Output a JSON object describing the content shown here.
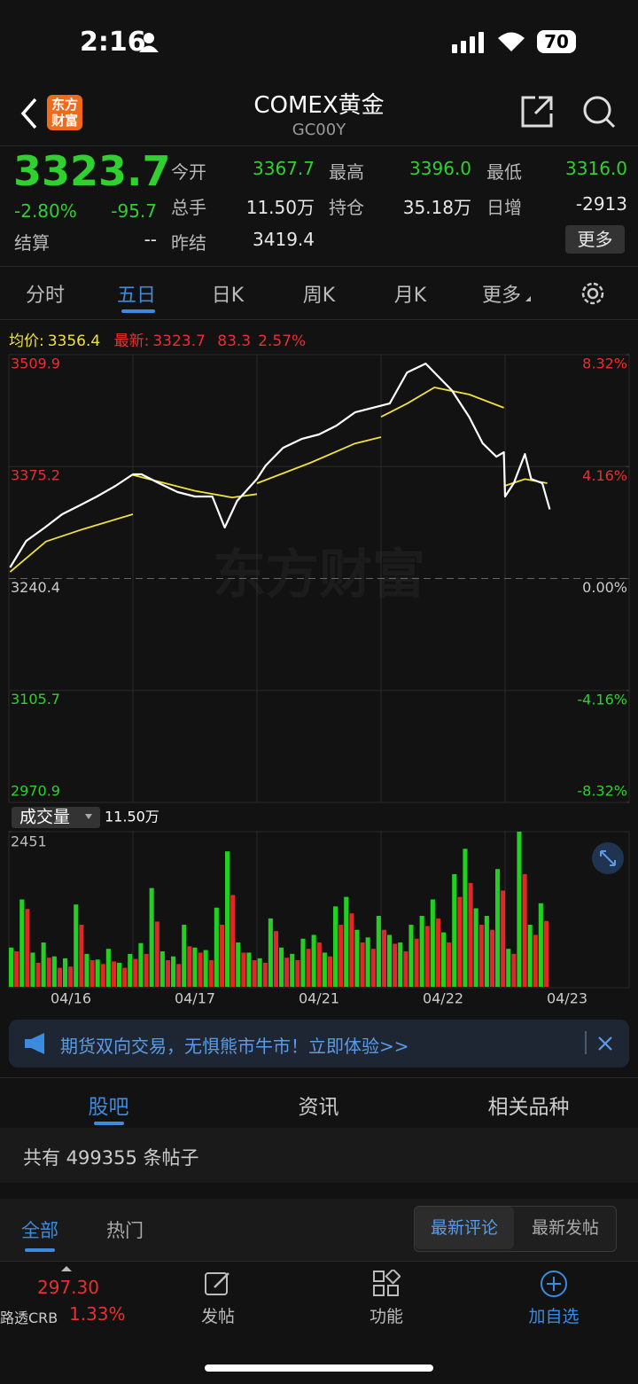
{
  "status": {
    "time": "2:16",
    "battery": "70"
  },
  "header": {
    "logo": "东方财富",
    "title": "COMEX黄金",
    "code": "GC00Y"
  },
  "quote": {
    "price": "3323.7",
    "change_pct": "-2.80%",
    "change": "-95.7",
    "more": "更多",
    "fields": [
      {
        "label": "今开",
        "value": "3367.7",
        "color": "#2fd02f"
      },
      {
        "label": "最高",
        "value": "3396.0",
        "color": "#2fd02f"
      },
      {
        "label": "最低",
        "value": "3316.0",
        "color": "#2fd02f"
      },
      {
        "label": "总手",
        "value": "11.50万",
        "color": "#e8e8e8"
      },
      {
        "label": "持仓",
        "value": "35.18万",
        "color": "#e8e8e8"
      },
      {
        "label": "日增",
        "value": "-2913",
        "color": "#e8e8e8"
      },
      {
        "label": "结算",
        "value": "--",
        "color": "#e8e8e8"
      },
      {
        "label": "昨结",
        "value": "3419.4",
        "color": "#e8e8e8"
      }
    ]
  },
  "tabs": {
    "items": [
      "分时",
      "五日",
      "日K",
      "周K",
      "月K",
      "更多"
    ],
    "active": 1
  },
  "legend": {
    "avg_label": "均价:",
    "avg": "3356.4",
    "latest_label": "最新:",
    "latest": "3323.7",
    "change": "83.3",
    "change_pct": "2.57%"
  },
  "price_chart": {
    "type": "line",
    "watermark": "东方财富",
    "ylim": [
      2970.9,
      3509.9
    ],
    "yticks": [
      3509.9,
      3375.2,
      3240.4,
      3105.7,
      2970.9
    ],
    "y2lim": [
      -8.32,
      8.32
    ],
    "y2ticks": [
      {
        "value": 8.32,
        "label": "8.32%"
      },
      {
        "value": 4.16,
        "label": "4.16%"
      },
      {
        "value": 0,
        "label": "0.00%"
      },
      {
        "value": -4.16,
        "label": "-4.16%"
      },
      {
        "value": -8.32,
        "label": "-8.32%"
      }
    ],
    "xlim": [
      0,
      5
    ],
    "categories": [
      "04/16",
      "04/17",
      "04/21",
      "04/22",
      "04/23"
    ],
    "price": {
      "color": "#ffffff",
      "x": [
        0.01,
        0.14,
        0.29,
        0.43,
        0.57,
        0.71,
        0.86,
        1.0,
        1.07,
        1.21,
        1.36,
        1.5,
        1.64,
        1.74,
        1.84,
        2.0,
        2.07,
        2.21,
        2.36,
        2.5,
        2.64,
        2.79,
        2.93,
        3.07,
        3.21,
        3.36,
        3.43,
        3.57,
        3.71,
        3.82,
        3.93,
        3.99,
        4.0,
        4.07,
        4.16,
        4.21,
        4.3,
        4.36
      ],
      "values": [
        3253.7,
        3285.7,
        3301.8,
        3317.8,
        3328.4,
        3339.1,
        3351.9,
        3365.8,
        3365.8,
        3355.1,
        3344.5,
        3339.1,
        3339.1,
        3301.8,
        3333.8,
        3360.4,
        3376.4,
        3397.7,
        3408.4,
        3413.8,
        3424.4,
        3440.4,
        3445.8,
        3451.1,
        3488.5,
        3499.1,
        3488.5,
        3467.1,
        3435.1,
        3403.1,
        3387.1,
        3392.4,
        3339.1,
        3355.1,
        3390.3,
        3360.4,
        3355.1,
        3323.7
      ]
    },
    "avg": {
      "color": "#f0e040",
      "x": [
        0.01,
        0.3,
        0.6,
        1.0,
        null,
        1.0,
        1.5,
        1.8,
        2.0,
        null,
        2.0,
        2.43,
        2.79,
        3.0,
        null,
        3.0,
        3.21,
        3.43,
        3.71,
        3.99,
        null,
        4.0,
        4.16,
        4.34
      ],
      "values": [
        3248.4,
        3285.0,
        3300.0,
        3317.8,
        null,
        3365.0,
        3346.0,
        3338.0,
        3342.0,
        null,
        3355.0,
        3379.7,
        3403.0,
        3410.6,
        null,
        3435.0,
        3451.0,
        3470.4,
        3462.0,
        3446.0,
        null,
        3352.0,
        3360.0,
        3355.1
      ]
    }
  },
  "volume": {
    "type": "bar",
    "label": "成交量",
    "total": "11.50万",
    "ylim": [
      0,
      2451
    ],
    "yticks": [
      2451
    ],
    "series": [
      {
        "color": "#22d022",
        "values": [
          620,
          1380,
          540,
          700,
          480,
          450,
          1300,
          520,
          430,
          600,
          380,
          520,
          690,
          1560,
          560,
          480,
          980,
          620,
          580,
          1250,
          2140,
          700,
          540,
          450,
          1080,
          620,
          520,
          760,
          820,
          540,
          1270,
          1420,
          900,
          780,
          1120,
          820,
          700,
          980,
          1120,
          1380,
          860,
          1780,
          2180,
          1240,
          1120,
          1860,
          600,
          2451,
          980,
          1320
        ]
      },
      {
        "color": "#e02828",
        "values": [
          560,
          1230,
          380,
          460,
          300,
          320,
          980,
          420,
          360,
          400,
          300,
          440,
          520,
          1030,
          420,
          360,
          640,
          540,
          420,
          980,
          1450,
          540,
          420,
          380,
          880,
          460,
          420,
          600,
          700,
          480,
          980,
          1160,
          700,
          600,
          900,
          680,
          560,
          760,
          960,
          1080,
          700,
          1420,
          1640,
          980,
          900,
          1520,
          520,
          1780,
          820,
          1040
        ]
      }
    ]
  },
  "banner": {
    "text": "期货双向交易，无惧熊市牛市！立即体验>>"
  },
  "section_tabs": {
    "items": [
      "股吧",
      "资讯",
      "相关品种"
    ],
    "active": 0
  },
  "posts": {
    "count_text": "共有 499355 条帖子"
  },
  "filters": {
    "items": [
      "全部",
      "热门"
    ],
    "sort": [
      "最新评论",
      "最新发帖"
    ]
  },
  "bottom": {
    "index_value": "297.30",
    "index_name": "路透CRB",
    "index_pct": "1.33%",
    "actions": [
      "发帖",
      "功能",
      "加自选"
    ]
  }
}
